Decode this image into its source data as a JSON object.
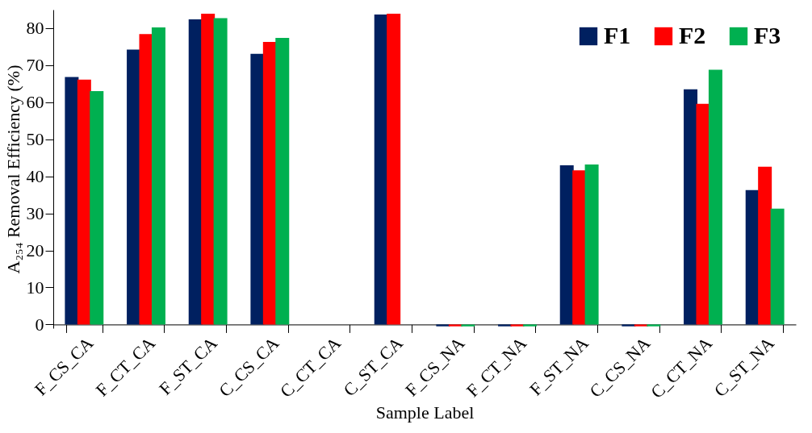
{
  "chart_data": {
    "type": "bar",
    "xlabel": "Sample Label",
    "ylabel": "A₂₅₄ Removal Efficiency  (%)",
    "categories": [
      "F_CS_CA",
      "F_CT_CA",
      "F_ST_CA",
      "C_CS_CA",
      "C_CT_CA",
      "C_ST_CA",
      "F_CS_NA",
      "F_CT_NA",
      "F_ST_NA",
      "C_CS_NA",
      "C_CT_NA",
      "C_ST_NA"
    ],
    "series": [
      {
        "name": "F1",
        "color": "#002060",
        "values": [
          66.8,
          74.2,
          82.4,
          73.1,
          null,
          83.7,
          -0.5,
          -0.5,
          43.0,
          -0.5,
          63.5,
          36.3
        ]
      },
      {
        "name": "F2",
        "color": "#ff0000",
        "values": [
          66.1,
          78.4,
          83.9,
          76.3,
          null,
          83.9,
          -0.5,
          -0.5,
          41.6,
          -0.5,
          59.6,
          42.6
        ]
      },
      {
        "name": "F3",
        "color": "#00b050",
        "values": [
          63.0,
          80.2,
          82.7,
          77.4,
          null,
          null,
          -0.5,
          -0.5,
          43.2,
          -0.5,
          68.8,
          31.3
        ]
      }
    ],
    "ylim": [
      -1,
      85
    ],
    "yticks": [
      0,
      10,
      20,
      30,
      40,
      50,
      60,
      70,
      80
    ],
    "grid": false,
    "legend": "top right"
  }
}
